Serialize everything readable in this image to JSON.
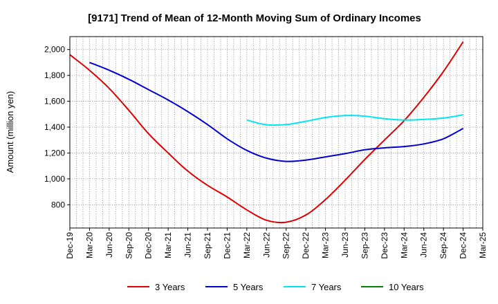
{
  "chart_data": {
    "type": "line",
    "title": "[9171]  Trend of Mean of 12-Month Moving Sum of Ordinary Incomes",
    "xlabel": "",
    "ylabel": "Amount (million yen)",
    "ylim": [
      620,
      2100
    ],
    "yticks": [
      800,
      1000,
      1200,
      1400,
      1600,
      1800,
      2000
    ],
    "ytick_labels": [
      "800",
      "1,000",
      "1,200",
      "1,400",
      "1,600",
      "1,800",
      "2,000"
    ],
    "categories": [
      "Dec-19",
      "Mar-20",
      "Jun-20",
      "Sep-20",
      "Dec-20",
      "Mar-21",
      "Jun-21",
      "Sep-21",
      "Dec-21",
      "Mar-22",
      "Jun-22",
      "Sep-22",
      "Dec-22",
      "Mar-23",
      "Jun-23",
      "Sep-23",
      "Dec-23",
      "Mar-24",
      "Jun-24",
      "Sep-24",
      "Dec-24",
      "Mar-25"
    ],
    "grid": true,
    "legend_position": "bottom",
    "series": [
      {
        "name": "3 Years",
        "color": "#dd0000",
        "values": [
          1960,
          1840,
          1700,
          1530,
          1350,
          1200,
          1060,
          950,
          860,
          760,
          680,
          665,
          720,
          840,
          990,
          1150,
          1300,
          1450,
          1630,
          1830,
          2060,
          null
        ]
      },
      {
        "name": "5 Years",
        "color": "#0000cc",
        "values": [
          null,
          1900,
          1840,
          1770,
          1690,
          1610,
          1520,
          1420,
          1310,
          1220,
          1160,
          1135,
          1145,
          1170,
          1195,
          1225,
          1240,
          1250,
          1270,
          1310,
          1390,
          null
        ]
      },
      {
        "name": "7 Years",
        "color": "#00e5ee",
        "values": [
          null,
          null,
          null,
          null,
          null,
          null,
          null,
          null,
          null,
          1455,
          1418,
          1420,
          1445,
          1475,
          1490,
          1485,
          1465,
          1455,
          1460,
          1470,
          1495,
          null
        ]
      },
      {
        "name": "10 Years",
        "color": "#008000",
        "values": [
          null,
          null,
          null,
          null,
          null,
          null,
          null,
          null,
          null,
          null,
          null,
          null,
          null,
          null,
          null,
          null,
          null,
          null,
          null,
          null,
          null,
          null
        ]
      }
    ]
  }
}
